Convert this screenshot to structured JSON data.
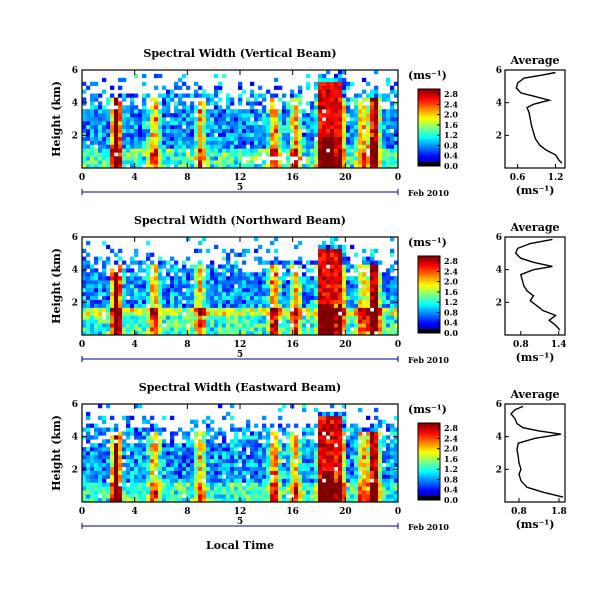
{
  "chart_data": [
    {
      "type": "heatmap",
      "title": "Spectral Width (Vertical Beam)",
      "ylabel": "Height (km)",
      "yticks": [
        "2",
        "4",
        "6"
      ],
      "ylim": [
        0,
        6
      ],
      "xticks": [
        "0",
        "4",
        "8",
        "12",
        "16",
        "20",
        "0"
      ],
      "xlim": [
        0,
        24
      ],
      "colorbar": {
        "unit": "(ms⁻¹)",
        "ticks": [
          "0.0",
          "0.4",
          "0.8",
          "1.2",
          "1.6",
          "2.0",
          "2.4",
          "2.8"
        ],
        "range": [
          0,
          3.0
        ]
      },
      "date_axis": {
        "day": "5",
        "label": "Feb 2010"
      },
      "profile": {
        "title": "Average",
        "xticks": [
          "0.6",
          "1.2"
        ],
        "xlim": [
          0.4,
          1.35
        ],
        "xlabel": "(ms⁻¹)",
        "yticks": [
          "2",
          "4",
          "6"
        ],
        "ylim": [
          0,
          6
        ],
        "points": [
          [
            1.3,
            0.3
          ],
          [
            1.25,
            0.5
          ],
          [
            1.2,
            0.8
          ],
          [
            1.05,
            1.1
          ],
          [
            0.95,
            1.4
          ],
          [
            0.88,
            1.8
          ],
          [
            0.85,
            2.2
          ],
          [
            0.82,
            2.6
          ],
          [
            0.8,
            3.0
          ],
          [
            0.78,
            3.4
          ],
          [
            0.75,
            3.7
          ],
          [
            0.85,
            3.9
          ],
          [
            1.1,
            4.15
          ],
          [
            0.85,
            4.4
          ],
          [
            0.65,
            4.6
          ],
          [
            0.58,
            4.9
          ],
          [
            0.6,
            5.2
          ],
          [
            0.7,
            5.5
          ],
          [
            1.0,
            5.7
          ],
          [
            1.2,
            5.85
          ]
        ]
      }
    },
    {
      "type": "heatmap",
      "title": "Spectral Width (Northward Beam)",
      "ylabel": "Height (km)",
      "yticks": [
        "2",
        "4",
        "6"
      ],
      "ylim": [
        0,
        6
      ],
      "xticks": [
        "0",
        "4",
        "8",
        "12",
        "16",
        "20",
        "0"
      ],
      "xlim": [
        0,
        24
      ],
      "colorbar": {
        "unit": "(ms⁻¹)",
        "ticks": [
          "0.0",
          "0.4",
          "0.8",
          "1.2",
          "1.6",
          "2.0",
          "2.4",
          "2.8"
        ],
        "range": [
          0,
          3.0
        ]
      },
      "date_axis": {
        "day": "5",
        "label": "Feb 2010"
      },
      "profile": {
        "title": "Average",
        "xticks": [
          "0.8",
          "1.4"
        ],
        "xlim": [
          0.55,
          1.5
        ],
        "xlabel": "(ms⁻¹)",
        "yticks": [
          "2",
          "4",
          "6"
        ],
        "ylim": [
          0,
          6
        ],
        "points": [
          [
            1.42,
            0.3
          ],
          [
            1.35,
            0.6
          ],
          [
            1.25,
            0.9
          ],
          [
            1.35,
            1.2
          ],
          [
            1.15,
            1.5
          ],
          [
            1.05,
            1.8
          ],
          [
            0.95,
            2.1
          ],
          [
            1.0,
            2.4
          ],
          [
            0.9,
            2.7
          ],
          [
            0.85,
            3.0
          ],
          [
            0.82,
            3.4
          ],
          [
            0.8,
            3.7
          ],
          [
            1.0,
            4.0
          ],
          [
            1.3,
            4.2
          ],
          [
            1.0,
            4.45
          ],
          [
            0.8,
            4.7
          ],
          [
            0.72,
            5.0
          ],
          [
            0.75,
            5.3
          ],
          [
            0.95,
            5.6
          ],
          [
            1.3,
            5.85
          ]
        ]
      }
    },
    {
      "type": "heatmap",
      "title": "Spectral Width (Eastward Beam)",
      "ylabel": "Height (km)",
      "yticks": [
        "2",
        "4",
        "6"
      ],
      "ylim": [
        0,
        6
      ],
      "xticks": [
        "0",
        "4",
        "8",
        "12",
        "16",
        "20",
        "0"
      ],
      "xlim": [
        0,
        24
      ],
      "xlabel": "Local Time",
      "colorbar": {
        "unit": "(ms⁻¹)",
        "ticks": [
          "0.0",
          "0.4",
          "0.8",
          "1.2",
          "1.6",
          "2.0",
          "2.4",
          "2.8"
        ],
        "range": [
          0,
          3.0
        ]
      },
      "date_axis": {
        "day": "5",
        "label": "Feb 2010"
      },
      "profile": {
        "title": "Average",
        "xticks": [
          "0.8",
          "1.8"
        ],
        "xlim": [
          0.45,
          1.95
        ],
        "xlabel": "(ms⁻¹)",
        "yticks": [
          "2",
          "4",
          "6"
        ],
        "ylim": [
          0,
          6
        ],
        "points": [
          [
            1.9,
            0.3
          ],
          [
            1.4,
            0.6
          ],
          [
            1.0,
            0.9
          ],
          [
            0.85,
            1.3
          ],
          [
            0.8,
            1.7
          ],
          [
            0.85,
            2.0
          ],
          [
            0.8,
            2.4
          ],
          [
            0.78,
            2.8
          ],
          [
            0.75,
            3.2
          ],
          [
            0.78,
            3.6
          ],
          [
            1.2,
            3.9
          ],
          [
            1.85,
            4.15
          ],
          [
            1.3,
            4.35
          ],
          [
            0.9,
            4.55
          ],
          [
            0.75,
            4.8
          ],
          [
            0.7,
            5.1
          ],
          [
            0.6,
            5.4
          ],
          [
            0.7,
            5.65
          ],
          [
            0.9,
            5.85
          ]
        ]
      }
    }
  ]
}
